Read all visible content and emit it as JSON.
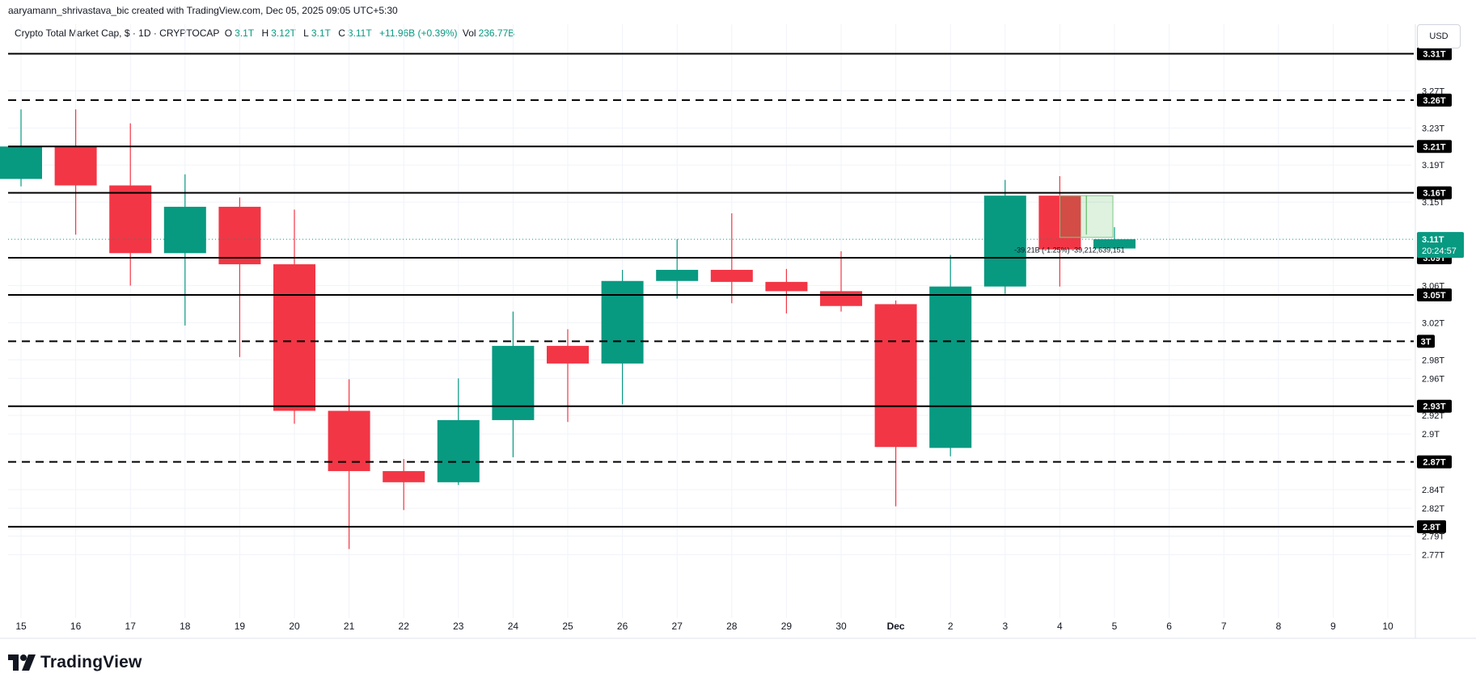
{
  "header": {
    "attribution": "aaryamann_shrivastava_bic created with TradingView.com, Dec 05, 2025 09:05 UTC+5:30"
  },
  "legend": {
    "symbol": "Crypto Total Market Cap, $ · 1D · CRYPTOCAP",
    "o_label": "O",
    "o_value": "3.1T",
    "h_label": "H",
    "h_value": "3.12T",
    "l_label": "L",
    "l_value": "3.1T",
    "c_label": "C",
    "c_value": "3.11T",
    "change": "+11.96B (+0.39%)",
    "vol_label": "Vol",
    "vol_value": "236.77B"
  },
  "currency": "USD",
  "brand": {
    "name": "TradingView"
  },
  "colors": {
    "up": "#089981",
    "down": "#f23645",
    "level": "#000000",
    "grid": "#f0f3fa",
    "axis_text": "#131722"
  },
  "chart_data": {
    "type": "candlestick",
    "x_tick_labels": [
      "15",
      "16",
      "17",
      "18",
      "19",
      "20",
      "21",
      "22",
      "23",
      "24",
      "25",
      "26",
      "27",
      "28",
      "29",
      "30",
      "Dec",
      "2",
      "3",
      "4",
      "5",
      "6",
      "7",
      "8",
      "9",
      "10"
    ],
    "y_tick_labels": [
      "3.27T",
      "3.23T",
      "3.19T",
      "3.15T",
      "3.06T",
      "3.02T",
      "2.98T",
      "2.96T",
      "2.92T",
      "2.9T",
      "2.87T",
      "2.84T",
      "2.82T",
      "2.79T",
      "2.77T"
    ],
    "y_tick_values": [
      3.27,
      3.23,
      3.19,
      3.15,
      3.06,
      3.02,
      2.98,
      2.96,
      2.92,
      2.9,
      2.87,
      2.84,
      2.82,
      2.79,
      2.77
    ],
    "candles": [
      {
        "date": "15",
        "open": 3.175,
        "high": 3.25,
        "low": 3.167,
        "close": 3.21
      },
      {
        "date": "16",
        "open": 3.21,
        "high": 3.25,
        "low": 3.115,
        "close": 3.168
      },
      {
        "date": "17",
        "open": 3.168,
        "high": 3.235,
        "low": 3.06,
        "close": 3.095
      },
      {
        "date": "18",
        "open": 3.095,
        "high": 3.18,
        "low": 3.017,
        "close": 3.145
      },
      {
        "date": "19",
        "open": 3.145,
        "high": 3.155,
        "low": 2.983,
        "close": 3.083
      },
      {
        "date": "20",
        "open": 3.083,
        "high": 3.142,
        "low": 2.911,
        "close": 2.925
      },
      {
        "date": "21",
        "open": 2.925,
        "high": 2.959,
        "low": 2.776,
        "close": 2.86
      },
      {
        "date": "22",
        "open": 2.86,
        "high": 2.873,
        "low": 2.818,
        "close": 2.848
      },
      {
        "date": "23",
        "open": 2.848,
        "high": 2.96,
        "low": 2.845,
        "close": 2.915
      },
      {
        "date": "24",
        "open": 2.915,
        "high": 3.032,
        "low": 2.875,
        "close": 2.995
      },
      {
        "date": "25",
        "open": 2.995,
        "high": 3.013,
        "low": 2.913,
        "close": 2.976
      },
      {
        "date": "26",
        "open": 2.976,
        "high": 3.077,
        "low": 2.932,
        "close": 3.065
      },
      {
        "date": "27",
        "open": 3.065,
        "high": 3.11,
        "low": 3.046,
        "close": 3.077
      },
      {
        "date": "28",
        "open": 3.077,
        "high": 3.138,
        "low": 3.041,
        "close": 3.064
      },
      {
        "date": "29",
        "open": 3.064,
        "high": 3.078,
        "low": 3.03,
        "close": 3.054
      },
      {
        "date": "30",
        "open": 3.054,
        "high": 3.097,
        "low": 3.032,
        "close": 3.038
      },
      {
        "date": "Dec",
        "open": 3.04,
        "high": 3.044,
        "low": 2.822,
        "close": 2.886
      },
      {
        "date": "2",
        "open": 2.885,
        "high": 3.093,
        "low": 2.876,
        "close": 3.059
      },
      {
        "date": "3",
        "open": 3.059,
        "high": 3.174,
        "low": 3.051,
        "close": 3.157
      },
      {
        "date": "4",
        "open": 3.157,
        "high": 3.178,
        "low": 3.059,
        "close": 3.099
      },
      {
        "date": "5",
        "open": 3.1,
        "high": 3.123,
        "low": 3.099,
        "close": 3.11
      }
    ],
    "levels": [
      {
        "label": "3.31T",
        "value": 3.31,
        "style": "solid"
      },
      {
        "label": "3.26T",
        "value": 3.26,
        "style": "dashed"
      },
      {
        "label": "3.21T",
        "value": 3.21,
        "style": "solid"
      },
      {
        "label": "3.16T",
        "value": 3.16,
        "style": "solid"
      },
      {
        "label": "3.09T",
        "value": 3.09,
        "style": "solid"
      },
      {
        "label": "3.05T",
        "value": 3.05,
        "style": "solid"
      },
      {
        "label": "3T",
        "value": 3.0,
        "style": "dashed"
      },
      {
        "label": "2.93T",
        "value": 2.93,
        "style": "solid"
      },
      {
        "label": "2.87T",
        "value": 2.87,
        "style": "dashed"
      },
      {
        "label": "2.8T",
        "value": 2.8,
        "style": "solid"
      }
    ],
    "last_price": {
      "value": 3.11,
      "label": "3.11T",
      "countdown": "20:24:57"
    },
    "measure_annotation": "-39.21B (-1.25%) -39,212,639,151",
    "grid": true
  }
}
